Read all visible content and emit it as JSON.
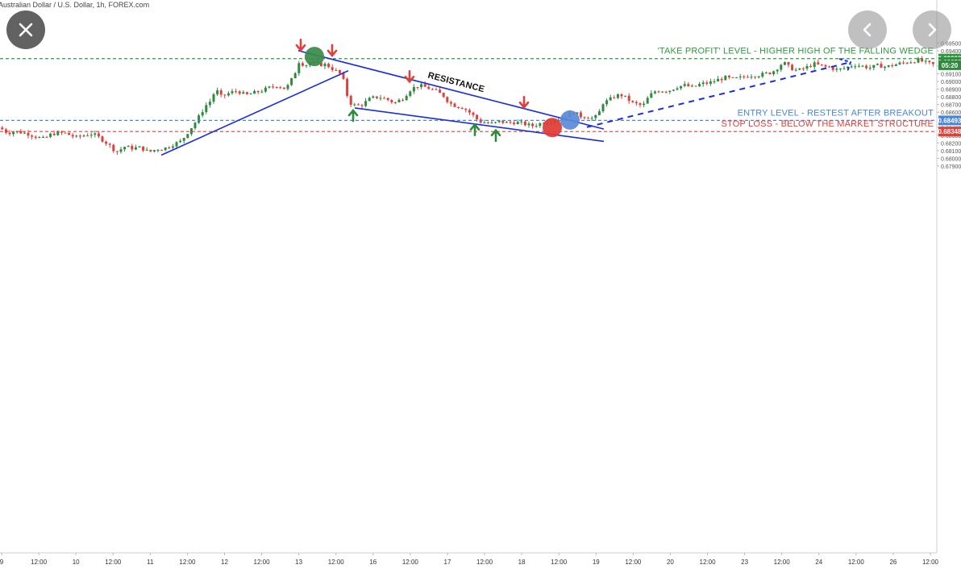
{
  "header": {
    "symbol_text": "Australian Dollar / U.S. Dollar, 1h, FOREX.com"
  },
  "nav": {
    "close_icon": "close-icon",
    "prev_icon": "chevron-left-icon",
    "next_icon": "chevron-right-icon"
  },
  "colors": {
    "bull": "#2e8b3e",
    "bear": "#e0403a",
    "trendline": "#1a2ee0",
    "take_profit": "#2e9a3e",
    "entry": "#4a86d8",
    "stop_loss": "#e0403a"
  },
  "chart_data": {
    "type": "candlestick",
    "title": "Australian Dollar / U.S. Dollar, 1h, FOREX.com",
    "ylim": [
      0.679,
      0.6956
    ],
    "y_ticks": [
      "0.69500",
      "0.69400",
      "0.69200",
      "0.69100",
      "0.69000",
      "0.68900",
      "0.68800",
      "0.68700",
      "0.68600",
      "0.68400",
      "0.68300",
      "0.68200",
      "0.68100",
      "0.68000",
      "0.67900"
    ],
    "y_tick_values": [
      0.695,
      0.694,
      0.692,
      0.691,
      0.69,
      0.689,
      0.688,
      0.687,
      0.686,
      0.684,
      0.683,
      0.682,
      0.681,
      0.68,
      0.679
    ],
    "x_ticks": [
      "9",
      "12:00",
      "10",
      "12:00",
      "11",
      "12:00",
      "12",
      "12:00",
      "13",
      "12:00",
      "16",
      "12:00",
      "17",
      "12:00",
      "18",
      "12:00",
      "19",
      "12:00",
      "20",
      "12:00",
      "23",
      "12:00",
      "24",
      "12:00",
      "26",
      "12:00"
    ],
    "price_path": [
      [
        0,
        0.684
      ],
      [
        10,
        0.6833
      ],
      [
        20,
        0.6835
      ],
      [
        35,
        0.6832
      ],
      [
        45,
        0.6828
      ],
      [
        55,
        0.6825
      ],
      [
        65,
        0.6832
      ],
      [
        80,
        0.6833
      ],
      [
        95,
        0.6827
      ],
      [
        105,
        0.683
      ],
      [
        115,
        0.6832
      ],
      [
        125,
        0.6826
      ],
      [
        135,
        0.6818
      ],
      [
        145,
        0.6808
      ],
      [
        155,
        0.6815
      ],
      [
        165,
        0.6813
      ],
      [
        175,
        0.6814
      ],
      [
        185,
        0.6808
      ],
      [
        195,
        0.6812
      ],
      [
        205,
        0.6813
      ],
      [
        215,
        0.6818
      ],
      [
        225,
        0.6822
      ],
      [
        235,
        0.6836
      ],
      [
        245,
        0.685
      ],
      [
        255,
        0.6868
      ],
      [
        262,
        0.6875
      ],
      [
        268,
        0.689
      ],
      [
        275,
        0.688
      ],
      [
        285,
        0.6885
      ],
      [
        295,
        0.6888
      ],
      [
        305,
        0.6882
      ],
      [
        315,
        0.6885
      ],
      [
        325,
        0.6888
      ],
      [
        335,
        0.6892
      ],
      [
        345,
        0.6895
      ],
      [
        355,
        0.689
      ],
      [
        362,
        0.6902
      ],
      [
        368,
        0.6915
      ],
      [
        372,
        0.6928
      ],
      [
        378,
        0.692
      ],
      [
        385,
        0.6925
      ],
      [
        395,
        0.6922
      ],
      [
        405,
        0.6922
      ],
      [
        415,
        0.6915
      ],
      [
        425,
        0.6908
      ],
      [
        430,
        0.6885
      ],
      [
        435,
        0.6872
      ],
      [
        442,
        0.6868
      ],
      [
        450,
        0.687
      ],
      [
        460,
        0.6878
      ],
      [
        470,
        0.688
      ],
      [
        480,
        0.6877
      ],
      [
        490,
        0.6872
      ],
      [
        500,
        0.6878
      ],
      [
        510,
        0.689
      ],
      [
        520,
        0.6895
      ],
      [
        530,
        0.6892
      ],
      [
        540,
        0.6888
      ],
      [
        550,
        0.6882
      ],
      [
        558,
        0.6872
      ],
      [
        566,
        0.6868
      ],
      [
        575,
        0.6866
      ],
      [
        585,
        0.6858
      ],
      [
        595,
        0.6848
      ],
      [
        605,
        0.6846
      ],
      [
        612,
        0.6845
      ],
      [
        620,
        0.6848
      ],
      [
        630,
        0.6846
      ],
      [
        640,
        0.6847
      ],
      [
        650,
        0.6845
      ],
      [
        660,
        0.6842
      ],
      [
        670,
        0.6845
      ],
      [
        680,
        0.6848
      ],
      [
        690,
        0.685
      ],
      [
        698,
        0.6853
      ],
      [
        705,
        0.6857
      ],
      [
        712,
        0.686
      ],
      [
        720,
        0.6855
      ],
      [
        728,
        0.6854
      ],
      [
        735,
        0.6852
      ],
      [
        742,
        0.6855
      ],
      [
        748,
        0.6872
      ],
      [
        755,
        0.6875
      ],
      [
        762,
        0.688
      ],
      [
        770,
        0.6883
      ],
      [
        778,
        0.6878
      ],
      [
        785,
        0.6872
      ],
      [
        792,
        0.687
      ],
      [
        798,
        0.6868
      ],
      [
        805,
        0.688
      ],
      [
        812,
        0.6887
      ],
      [
        820,
        0.6888
      ],
      [
        830,
        0.6888
      ],
      [
        840,
        0.6893
      ],
      [
        850,
        0.6895
      ],
      [
        860,
        0.6892
      ],
      [
        870,
        0.6897
      ],
      [
        880,
        0.6898
      ],
      [
        890,
        0.6902
      ],
      [
        900,
        0.6905
      ],
      [
        910,
        0.6903
      ],
      [
        920,
        0.6905
      ],
      [
        930,
        0.6908
      ],
      [
        940,
        0.6908
      ],
      [
        950,
        0.691
      ],
      [
        958,
        0.6912
      ],
      [
        965,
        0.6918
      ],
      [
        972,
        0.6925
      ],
      [
        980,
        0.6918
      ],
      [
        990,
        0.6914
      ],
      [
        1000,
        0.6918
      ],
      [
        1010,
        0.6923
      ],
      [
        1020,
        0.692
      ],
      [
        1030,
        0.6918
      ],
      [
        1040,
        0.6915
      ],
      [
        1050,
        0.6918
      ],
      [
        1060,
        0.6922
      ],
      [
        1070,
        0.692
      ],
      [
        1080,
        0.6918
      ],
      [
        1090,
        0.6921
      ],
      [
        1100,
        0.6919
      ],
      [
        1110,
        0.6922
      ],
      [
        1120,
        0.6924
      ],
      [
        1130,
        0.6926
      ],
      [
        1140,
        0.6928
      ],
      [
        1150,
        0.6924
      ],
      [
        1158,
        0.6922
      ]
    ],
    "levels": [
      {
        "name": "take_profit",
        "label": "'TAKE PROFIT' LEVEL - HIGHER HIGH OF THE FALLING WEDGE",
        "value": 0.69298,
        "badge": "0.69298"
      },
      {
        "name": "entry",
        "label": "ENTRY LEVEL - RESTEST AFTER BREAKOUT",
        "value": 0.68493,
        "badge": "0.68493"
      },
      {
        "name": "stop_loss",
        "label": "STOP LOSS - BELOW THE MARKET STRUCTURE",
        "value": 0.68348,
        "badge": "0.68348"
      }
    ],
    "extra_badges": [
      {
        "text": "0.69253",
        "value": 0.69253
      },
      {
        "text": "05:20",
        "value": 0.69212
      }
    ],
    "resistance_label": "RESISTANCE",
    "trendlines": [
      {
        "name": "rising-support-line",
        "from": [
          200,
          0.6804
        ],
        "to": [
          432,
          0.6914
        ]
      },
      {
        "name": "resistance-line",
        "from": [
          370,
          0.69402
        ],
        "to": [
          749,
          0.6838
        ]
      },
      {
        "name": "wedge-support-line",
        "from": [
          440,
          0.68655
        ],
        "to": [
          749,
          0.6822
        ]
      },
      {
        "name": "projection-line",
        "from": [
          728,
          0.68405
        ],
        "to": [
          1055,
          0.69252
        ],
        "dashed": true
      }
    ],
    "arrows_down": [
      [
        373,
        0.6946
      ],
      [
        412,
        0.6939
      ],
      [
        508,
        0.6905
      ],
      [
        650,
        0.68715
      ]
    ],
    "arrows_up": [
      [
        438,
        0.6857
      ],
      [
        589,
        0.68385
      ],
      [
        615,
        0.6831
      ]
    ],
    "markers": [
      {
        "name": "green-marker",
        "x": 390,
        "value": 0.69325,
        "color": "#3a8a4a"
      },
      {
        "name": "blue-marker",
        "x": 707,
        "value": 0.68498,
        "color": "#5a8ad8"
      },
      {
        "name": "red-marker",
        "x": 685,
        "value": 0.684,
        "color": "#e03a35"
      }
    ]
  }
}
